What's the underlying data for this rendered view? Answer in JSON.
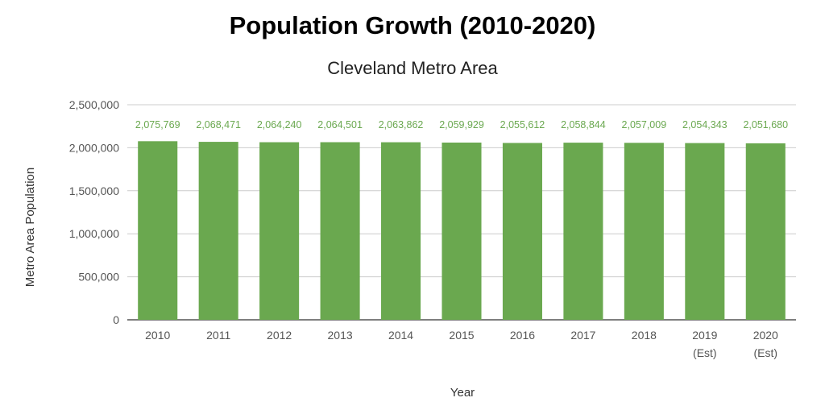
{
  "chart_data": {
    "type": "bar",
    "title": "Population Growth (2010-2020)",
    "subtitle": "Cleveland Metro Area",
    "xlabel": "Year",
    "ylabel": "Metro Area Population",
    "categories": [
      [
        "2010"
      ],
      [
        "2011"
      ],
      [
        "2012"
      ],
      [
        "2013"
      ],
      [
        "2014"
      ],
      [
        "2015"
      ],
      [
        "2016"
      ],
      [
        "2017"
      ],
      [
        "2018"
      ],
      [
        "2019",
        "(Est)"
      ],
      [
        "2020",
        "(Est)"
      ]
    ],
    "values": [
      2075769,
      2068471,
      2064240,
      2064501,
      2063862,
      2059929,
      2055612,
      2058844,
      2057009,
      2054343,
      2051680
    ],
    "data_labels": [
      "2,075,769",
      "2,068,471",
      "2,064,240",
      "2,064,501",
      "2,063,862",
      "2,059,929",
      "2,055,612",
      "2,058,844",
      "2,057,009",
      "2,054,343",
      "2,051,680"
    ],
    "yticks": [
      0,
      500000,
      1000000,
      1500000,
      2000000,
      2500000
    ],
    "ytick_labels": [
      "0",
      "500,000",
      "1,000,000",
      "1,500,000",
      "2,000,000",
      "2,500,000"
    ],
    "ylim": [
      0,
      2500000
    ],
    "grid": true,
    "legend": "none",
    "colors": {
      "bar": "#6aa84f",
      "label": "#6aa84f",
      "grid": "#cccccc",
      "axis": "#333333"
    }
  }
}
